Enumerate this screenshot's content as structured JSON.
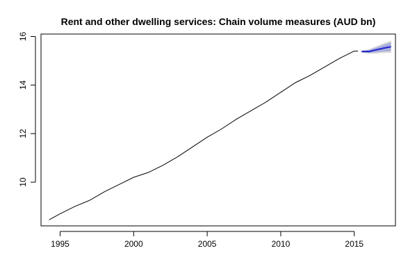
{
  "chart_data": {
    "type": "line",
    "title": "Rent and other dwelling services: Chain volume measures (AUD bn)",
    "xlabel": "",
    "ylabel": "",
    "xlim": [
      1993.7,
      2017.8
    ],
    "ylim": [
      8.2,
      16.1
    ],
    "x_ticks": [
      1995,
      2000,
      2005,
      2010,
      2015
    ],
    "x_tick_labels": [
      "1995",
      "2000",
      "2005",
      "2010",
      "2015"
    ],
    "y_ticks": [
      10,
      12,
      14,
      16
    ],
    "y_tick_labels": [
      "10",
      "12",
      "14",
      "16"
    ],
    "grid": false,
    "legend": "none",
    "series": [
      {
        "role": "historical",
        "color": "#000000",
        "x": [
          1994.25,
          1995.0,
          1996.0,
          1997.0,
          1998.0,
          1999.0,
          2000.0,
          2001.0,
          2002.0,
          2003.0,
          2004.0,
          2005.0,
          2006.0,
          2007.0,
          2008.0,
          2009.0,
          2010.0,
          2011.0,
          2012.0,
          2013.0,
          2014.0,
          2015.0,
          2015.25
        ],
        "y": [
          8.45,
          8.7,
          9.0,
          9.25,
          9.6,
          9.9,
          10.2,
          10.4,
          10.7,
          11.05,
          11.45,
          11.85,
          12.2,
          12.6,
          12.95,
          13.3,
          13.7,
          14.1,
          14.4,
          14.75,
          15.1,
          15.4,
          15.4
        ]
      },
      {
        "role": "forecast",
        "color": "#1f1fcc",
        "x": [
          2015.5,
          2016.0,
          2016.5,
          2017.0,
          2017.5
        ],
        "y": [
          15.38,
          15.38,
          15.45,
          15.52,
          15.58
        ]
      }
    ],
    "intervals": [
      {
        "role": "80%",
        "color": "#aab0dd",
        "x": [
          2015.5,
          2016.0,
          2016.5,
          2017.0,
          2017.5
        ],
        "lower": [
          15.35,
          15.32,
          15.35,
          15.38,
          15.4
        ],
        "upper": [
          15.41,
          15.44,
          15.55,
          15.66,
          15.76
        ]
      },
      {
        "role": "95%",
        "color": "#d9d9d9",
        "x": [
          2015.5,
          2016.0,
          2016.5,
          2017.0,
          2017.5
        ],
        "lower": [
          15.34,
          15.29,
          15.3,
          15.32,
          15.33
        ],
        "upper": [
          15.42,
          15.47,
          15.6,
          15.72,
          15.83
        ]
      }
    ]
  }
}
